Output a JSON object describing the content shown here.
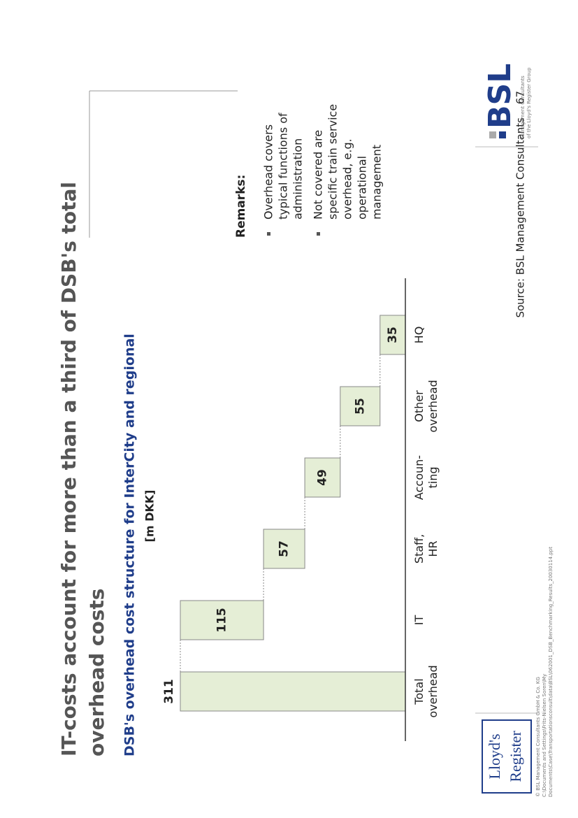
{
  "chart_data": {
    "type": "waterfall",
    "title": [
      "IT-costs account for more than a third of DSB's total",
      "overhead costs"
    ],
    "subtitle": "DSB's overhead cost structure for InterCity and regional",
    "unit": "[m DKK]",
    "categories": [
      "Total\noverhead",
      "IT",
      "Staff,\nHR",
      "Accoun-\nting",
      "Other\noverhead",
      "HQ"
    ],
    "values": [
      311,
      115,
      57,
      49,
      55,
      35
    ],
    "color": "#e5eed6",
    "ylim": [
      0,
      311
    ]
  },
  "remarks": {
    "title": "Remarks:",
    "bullets": [
      [
        "Overhead covers",
        "typical functions of",
        "administration"
      ],
      [
        "Not covered are",
        "specific train service",
        "overhead, e.g.",
        "operational",
        "management"
      ]
    ]
  },
  "footer": {
    "source": "Source: BSL Management Consultants",
    "page": "67",
    "small": [
      "© BSL Management Consultants GmbH & Co. KG",
      "C:\\Documents and Settings\\Frits-Nielsen Soren\\My",
      "Documents\\Case\\Transportationsconsult\\data\\BSL\\062001_DSB_Benchmarking_Results_20030114.ppt"
    ]
  },
  "logos": {
    "lloyds": [
      "Lloyd's",
      "Register"
    ],
    "bsl": "BSL",
    "bsl_sub": [
      "Management Consultants",
      "of the Lloyd's Register Group"
    ]
  }
}
